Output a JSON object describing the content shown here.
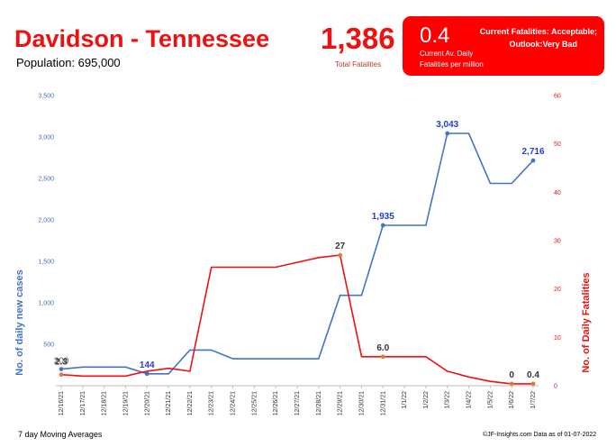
{
  "header": {
    "title": "Davidson - Tennessee",
    "population": "Population: 695,000",
    "total_fatalities": "1,386",
    "total_fatalities_label": "Total Fatalities"
  },
  "status_box": {
    "value": "0.4",
    "desc_line1": "Current Av. Daily",
    "desc_line2": "Fatalities per million",
    "fatalities_status": "Current Fatalities: Acceptable;",
    "outlook": "Outlook:Very Bad"
  },
  "footer": {
    "left": "7 day Moving Averages",
    "right": "©JF-Insights.com  Data as of 01-07-2022"
  },
  "colors": {
    "cases": "#4472c4",
    "fatalities": "#ee1111",
    "title": "#ee1111",
    "status_box": "#ff0000"
  },
  "chart_data": {
    "type": "line",
    "categories": [
      "12/16/21",
      "12/17/21",
      "12/18/21",
      "12/19/21",
      "12/20/21",
      "12/21/21",
      "12/22/21",
      "12/23/21",
      "12/24/21",
      "12/25/21",
      "12/26/21",
      "12/27/21",
      "12/28/21",
      "12/29/21",
      "12/30/21",
      "12/31/21",
      "1/1/22",
      "1/2/22",
      "1/3/22",
      "1/4/22",
      "1/5/22",
      "1/6/22",
      "1/7/22"
    ],
    "ylabel_left": "No. of daily new  cases",
    "ylabel_right": "No. of Daily Fatalities",
    "y_left_ticks": [
      "3,500",
      "3,000",
      "2,500",
      "2,000",
      "1,500",
      "1,000",
      "500"
    ],
    "y_left_range": [
      0,
      3500
    ],
    "y_right_ticks": [
      "60",
      "50",
      "40",
      "30",
      "20",
      "10",
      "0"
    ],
    "y_right_range": [
      0,
      60
    ],
    "grid": false,
    "series": [
      {
        "name": "No. of daily new  cases",
        "axis": "left",
        "values": [
          200,
          225,
          225,
          225,
          144,
          144,
          430,
          430,
          325,
          325,
          325,
          325,
          325,
          1090,
          1090,
          1935,
          1935,
          1935,
          3043,
          3043,
          2440,
          2440,
          2716
        ]
      },
      {
        "name": "No. of Daily Fatalities",
        "axis": "right",
        "values": [
          2.3,
          2.0,
          2.0,
          2.0,
          3.0,
          3.6,
          3.0,
          24.5,
          24.5,
          24.5,
          24.5,
          25.5,
          26.5,
          27.0,
          6.0,
          6.0,
          6.0,
          6.0,
          3.0,
          1.8,
          0.9,
          0.4,
          0.4
        ]
      }
    ],
    "annotations": [
      {
        "series": 0,
        "index": 0,
        "text": "200",
        "style": "gray"
      },
      {
        "series": 0,
        "index": 4,
        "text": "144",
        "style": "cases"
      },
      {
        "series": 0,
        "index": 15,
        "text": "1,935",
        "style": "cases"
      },
      {
        "series": 0,
        "index": 18,
        "text": "3,043",
        "style": "cases"
      },
      {
        "series": 0,
        "index": 22,
        "text": "2,716",
        "style": "cases"
      },
      {
        "series": 1,
        "index": 0,
        "text": "2.3",
        "style": "fat"
      },
      {
        "series": 1,
        "index": 13,
        "text": "27",
        "style": "fat"
      },
      {
        "series": 1,
        "index": 15,
        "text": "6.0",
        "style": "fat"
      },
      {
        "series": 1,
        "index": 21,
        "text": "0",
        "style": "fat"
      },
      {
        "series": 1,
        "index": 22,
        "text": "0.4",
        "style": "fat"
      }
    ]
  }
}
